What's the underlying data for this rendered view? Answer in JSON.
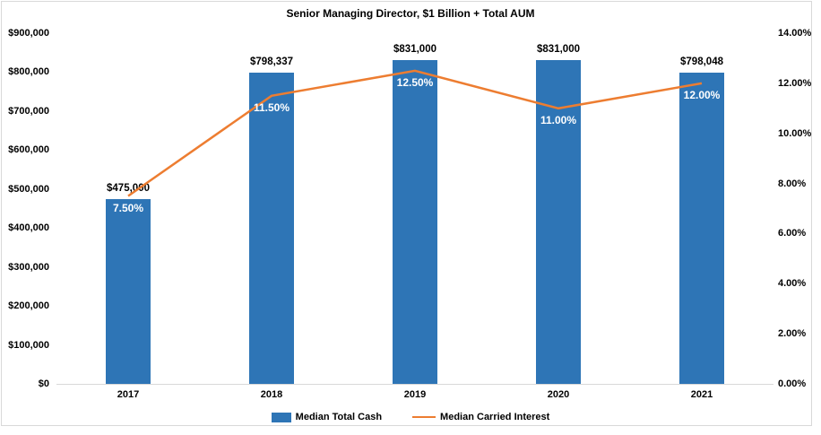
{
  "chart_title": "Senior Managing Director, $1 Billion + Total AUM",
  "chart_data": {
    "type": "bar",
    "title": "Senior Managing Director, $1 Billion + Total AUM",
    "categories": [
      "2017",
      "2018",
      "2019",
      "2020",
      "2021"
    ],
    "series": [
      {
        "name": "Median Total Cash",
        "type": "bar",
        "axis": "left",
        "color": "#2E75B6",
        "values": [
          475000,
          798337,
          831000,
          831000,
          798048
        ],
        "labels": [
          "$475,000",
          "$798,337",
          "$831,000",
          "$831,000",
          "$798,048"
        ]
      },
      {
        "name": "Median Carried Interest",
        "type": "line",
        "axis": "right",
        "color": "#ED7D31",
        "values": [
          7.5,
          11.5,
          12.5,
          11.0,
          12.0
        ],
        "labels": [
          "7.50%",
          "11.50%",
          "12.50%",
          "11.00%",
          "12.00%"
        ]
      }
    ],
    "left_axis": {
      "min": 0,
      "max": 900000,
      "step": 100000,
      "tick_labels": [
        "$0",
        "$100,000",
        "$200,000",
        "$300,000",
        "$400,000",
        "$500,000",
        "$600,000",
        "$700,000",
        "$800,000",
        "$900,000"
      ]
    },
    "right_axis": {
      "min": 0,
      "max": 14,
      "step": 2,
      "tick_labels": [
        "0.00%",
        "2.00%",
        "4.00%",
        "6.00%",
        "8.00%",
        "10.00%",
        "12.00%",
        "14.00%"
      ]
    },
    "grid": false,
    "legend_position": "bottom",
    "legend": [
      {
        "label": "Median Total Cash",
        "swatch": "bar",
        "color": "#2E75B6"
      },
      {
        "label": "Median Carried Interest",
        "swatch": "line",
        "color": "#ED7D31"
      }
    ]
  }
}
